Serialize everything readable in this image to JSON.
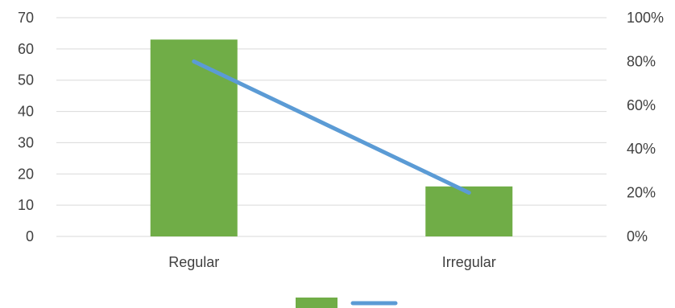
{
  "chart_data": {
    "type": "bar",
    "categories": [
      "Regular",
      "Irregular"
    ],
    "series": [
      {
        "type": "bar",
        "axis": "left",
        "values": [
          63,
          16
        ],
        "color": "#70ad47"
      },
      {
        "type": "line",
        "axis": "right",
        "values": [
          0.8,
          0.2
        ],
        "color": "#5b9bd5"
      }
    ],
    "y_left": {
      "min": 0,
      "max": 70,
      "step": 10,
      "ticks": [
        "0",
        "10",
        "20",
        "30",
        "40",
        "50",
        "60",
        "70"
      ]
    },
    "y_right": {
      "min": 0,
      "max": 1,
      "step": 0.2,
      "ticks": [
        "0%",
        "20%",
        "40%",
        "60%",
        "80%",
        "100%"
      ]
    },
    "grid": true,
    "legend_position": "bottom",
    "title": "",
    "xlabel": "",
    "ylabel": ""
  }
}
